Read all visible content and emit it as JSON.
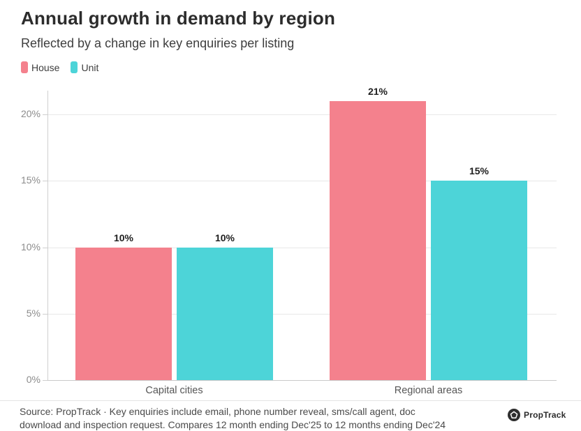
{
  "header": {
    "title": "Annual growth in demand by region",
    "subtitle": "Reflected by a change in key enquiries per listing"
  },
  "legend": {
    "items": [
      {
        "label": "House",
        "color": "#F4818D"
      },
      {
        "label": "Unit",
        "color": "#4DD4D8"
      }
    ]
  },
  "chart_data": {
    "type": "bar",
    "title": "Annual growth in demand by region",
    "subtitle": "Reflected by a change in key enquiries per listing",
    "categories": [
      "Capital cities",
      "Regional areas"
    ],
    "series": [
      {
        "name": "House",
        "color": "#F4818D",
        "values": [
          10,
          21
        ],
        "data_labels": [
          "10%",
          "21%"
        ]
      },
      {
        "name": "Unit",
        "color": "#4DD4D8",
        "values": [
          10,
          15
        ],
        "data_labels": [
          "10%",
          "15%"
        ]
      }
    ],
    "xlabel": "",
    "ylabel": "",
    "ylim": [
      0,
      21.8
    ],
    "y_ticks": [
      {
        "value": 0,
        "label": "0%"
      },
      {
        "value": 5,
        "label": "5%"
      },
      {
        "value": 10,
        "label": "10%"
      },
      {
        "value": 15,
        "label": "15%"
      },
      {
        "value": 20,
        "label": "20%"
      }
    ],
    "grid": "horizontal",
    "legend_position": "top-left"
  },
  "footer": {
    "source_lines": [
      "Source: PropTrack · Key enquiries include email, phone number reveal, sms/call agent, doc",
      "download and inspection request. Compares 12 month ending Dec'25 to 12 months ending Dec'24"
    ],
    "logo_text": "PropTrack"
  }
}
